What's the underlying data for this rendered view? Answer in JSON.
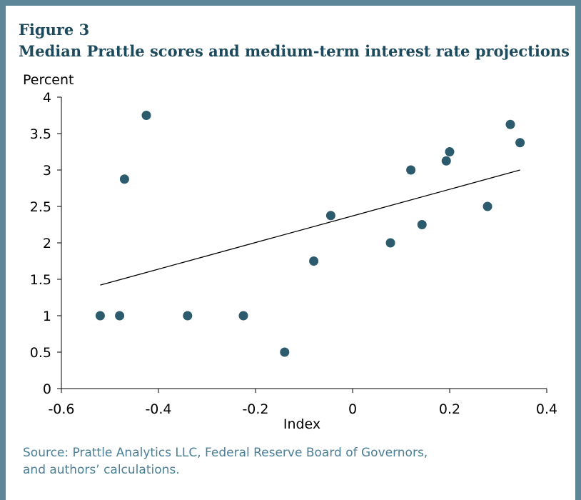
{
  "chart_data": {
    "type": "scatter",
    "title": "Figure 3",
    "subtitle": "Median Prattle scores and medium-term interest rate projections",
    "y_label": "Percent",
    "x_label": "Index",
    "source": [
      "Source: Prattle Analytics LLC, Federal Reserve Board of Governors,",
      "and authors’ calculations."
    ],
    "x": [
      -0.52,
      -0.48,
      -0.47,
      -0.425,
      -0.34,
      -0.225,
      -0.14,
      -0.08,
      -0.045,
      0.078,
      0.12,
      0.143,
      0.193,
      0.2,
      0.278,
      0.325,
      0.345
    ],
    "values": [
      1,
      1,
      2.875,
      3.75,
      1,
      1,
      0.5,
      1.75,
      2.375,
      2,
      3,
      2.25,
      3.125,
      3.25,
      2.5,
      3.625,
      3.375
    ],
    "color": "#2b5b6d",
    "trend_line": {
      "x": [
        -0.52,
        0.345
      ],
      "y": [
        1.42,
        3.0
      ],
      "color": "#000000"
    },
    "xlim": [
      -0.6,
      0.4
    ],
    "xticks": [
      -0.6,
      -0.4,
      -0.2,
      0,
      0.2,
      0.4
    ],
    "ylim": [
      0,
      4
    ],
    "yticks": [
      0,
      0.5,
      1,
      1.5,
      2,
      2.5,
      3,
      3.5,
      4
    ],
    "grid": false
  }
}
